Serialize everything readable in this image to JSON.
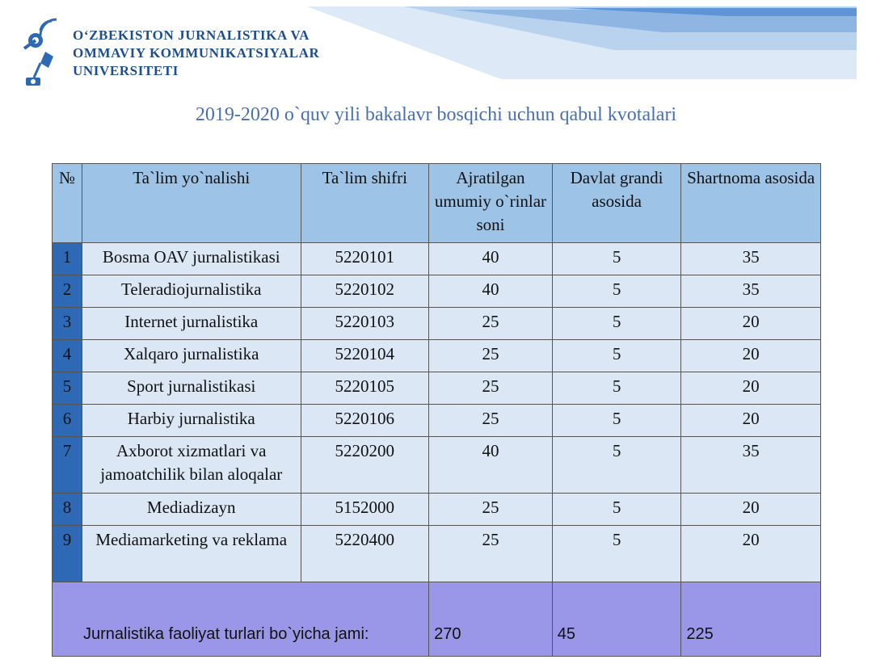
{
  "header": {
    "university_lines": [
      "O‘ZBEKISTON JURNALISTIKA VA",
      "OMMAVIY KOMMUNIKATSIYALAR",
      "UNIVERSITETI"
    ],
    "accent_color": "#2e69b6"
  },
  "title": "2019-2020 o`quv yili bakalavr bosqichi uchun qabul kvotalari",
  "table": {
    "headers": [
      "№",
      "Ta`lim yo`nalishi",
      "Ta`lim shifri",
      "Ajratilgan umumiy o`rinlar soni",
      "Davlat grandi asosida",
      "Shartnoma asosida"
    ],
    "rows": [
      {
        "n": "1",
        "name": "Bosma OAV jurnalistikasi",
        "code": "5220101",
        "total": "40",
        "grant": "5",
        "contract": "35"
      },
      {
        "n": "2",
        "name": "Teleradiojurnalistika",
        "code": "5220102",
        "total": "40",
        "grant": "5",
        "contract": "35"
      },
      {
        "n": "3",
        "name": "Internet jurnalistika",
        "code": "5220103",
        "total": "25",
        "grant": "5",
        "contract": "20"
      },
      {
        "n": "4",
        "name": "Xalqaro jurnalistika",
        "code": "5220104",
        "total": "25",
        "grant": "5",
        "contract": "20"
      },
      {
        "n": "5",
        "name": "Sport jurnalistikasi",
        "code": "5220105",
        "total": "25",
        "grant": "5",
        "contract": "20"
      },
      {
        "n": "6",
        "name": "Harbiy jurnalistika",
        "code": "5220106",
        "total": "25",
        "grant": "5",
        "contract": "20"
      },
      {
        "n": "7",
        "name": "Axborot xizmatlari va jamoatchilik bilan aloqalar",
        "code": "5220200",
        "total": "40",
        "grant": "5",
        "contract": "35"
      },
      {
        "n": "8",
        "name": "Mediadizayn",
        "code": "5152000",
        "total": "25",
        "grant": "5",
        "contract": "20"
      },
      {
        "n": "9",
        "name": "Mediamarketing va reklama",
        "code": "5220400",
        "total": "25",
        "grant": "5",
        "contract": "20"
      }
    ],
    "total": {
      "label": "Jurnalistika faoliyat turlari bo`yicha jami:",
      "total": "270",
      "grant": "45",
      "contract": "225"
    }
  }
}
